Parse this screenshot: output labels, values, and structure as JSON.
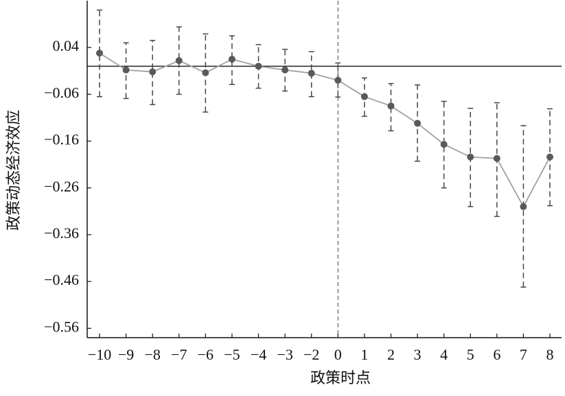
{
  "chart_data": {
    "type": "errorbar-line",
    "x_label": "政策时点",
    "y_label": "政策动态经济效应",
    "categories": [
      "−10",
      "−9",
      "−8",
      "−7",
      "−6",
      "−5",
      "−4",
      "−3",
      "−2",
      "0",
      "1",
      "2",
      "3",
      "4",
      "5",
      "6",
      "7",
      "8"
    ],
    "series": [
      {
        "color": "#5a5a5a",
        "line_color": "#a0a0a0",
        "error_color": "#444444",
        "values": [
          0.028,
          -0.008,
          -0.012,
          0.012,
          -0.014,
          0.015,
          0.0,
          -0.008,
          -0.015,
          -0.03,
          -0.065,
          -0.085,
          -0.122,
          -0.167,
          -0.194,
          -0.197,
          -0.3,
          -0.194
        ],
        "ci_lower": [
          -0.065,
          -0.069,
          -0.082,
          -0.06,
          -0.098,
          -0.039,
          -0.047,
          -0.053,
          -0.065,
          -0.066,
          -0.107,
          -0.138,
          -0.203,
          -0.26,
          -0.3,
          -0.321,
          -0.472,
          -0.298
        ],
        "ci_upper": [
          0.12,
          0.05,
          0.055,
          0.084,
          0.069,
          0.065,
          0.046,
          0.036,
          0.031,
          0.007,
          -0.025,
          -0.037,
          -0.04,
          -0.075,
          -0.09,
          -0.078,
          -0.127,
          -0.091
        ]
      }
    ],
    "ylim": [
      -0.58,
      0.14
    ],
    "yticks": [
      {
        "value": -0.56,
        "label": "−0.56"
      },
      {
        "value": -0.46,
        "label": "−0.46"
      },
      {
        "value": -0.36,
        "label": "−0.36"
      },
      {
        "value": -0.26,
        "label": "−0.26"
      },
      {
        "value": -0.16,
        "label": "−0.16"
      },
      {
        "value": -0.06,
        "label": "−0.06"
      },
      0.04
    ],
    "hline": 0,
    "vline_category": "0",
    "grid": false
  }
}
